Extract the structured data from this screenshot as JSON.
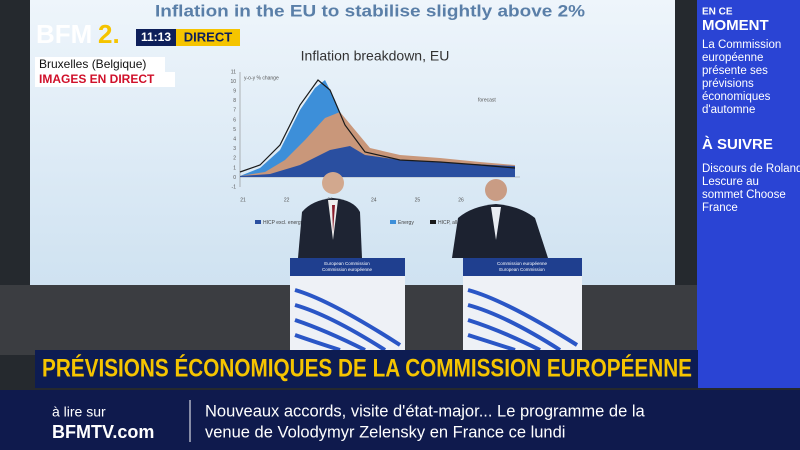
{
  "logo": {
    "brand": "BFM",
    "channel": "2."
  },
  "live": {
    "time": "11:13",
    "label": "DIRECT"
  },
  "location": {
    "place": "Bruxelles (Belgique)",
    "status": "IMAGES EN DIRECT"
  },
  "slide": {
    "title": "Inflation in the EU to stabilise slightly above 2%",
    "subtitle": "Inflation breakdown, EU",
    "axis_label": "y-o-y % change",
    "yticks": [
      "11",
      "10",
      "9",
      "8",
      "7",
      "6",
      "5",
      "4",
      "3",
      "2",
      "1",
      "0",
      "-1"
    ],
    "xticks": [
      "21",
      "22",
      "23",
      "24",
      "25",
      "26"
    ],
    "forecast": "forecast",
    "legend": [
      "HICP excl. energy",
      "Energy",
      "HICP, all items"
    ]
  },
  "podiums": {
    "left": [
      "European Commission",
      "Commission européenne"
    ],
    "right": [
      "Commission européenne",
      "European Commission"
    ]
  },
  "side_panel": {
    "now_kicker": "EN CE",
    "now_title": "MOMENT",
    "now_lines": [
      "La Commission",
      "européenne",
      "présente ses",
      "prévisions",
      "économiques",
      "d'automne"
    ],
    "next_title": "À SUIVRE",
    "next_lines": [
      "Discours de Roland",
      "Lescure au",
      "sommet Choose",
      "France"
    ]
  },
  "banner": "PRÉVISIONS ÉCONOMIQUES DE LA COMMISSION EUROPÉENNE",
  "footer": {
    "read_on": "à lire sur",
    "site": "BFMTV.com",
    "ticker": [
      "Nouveaux accords, visite d'état-major... Le programme de la",
      "venue de Volodymyr Zelensky en France ce lundi"
    ]
  }
}
